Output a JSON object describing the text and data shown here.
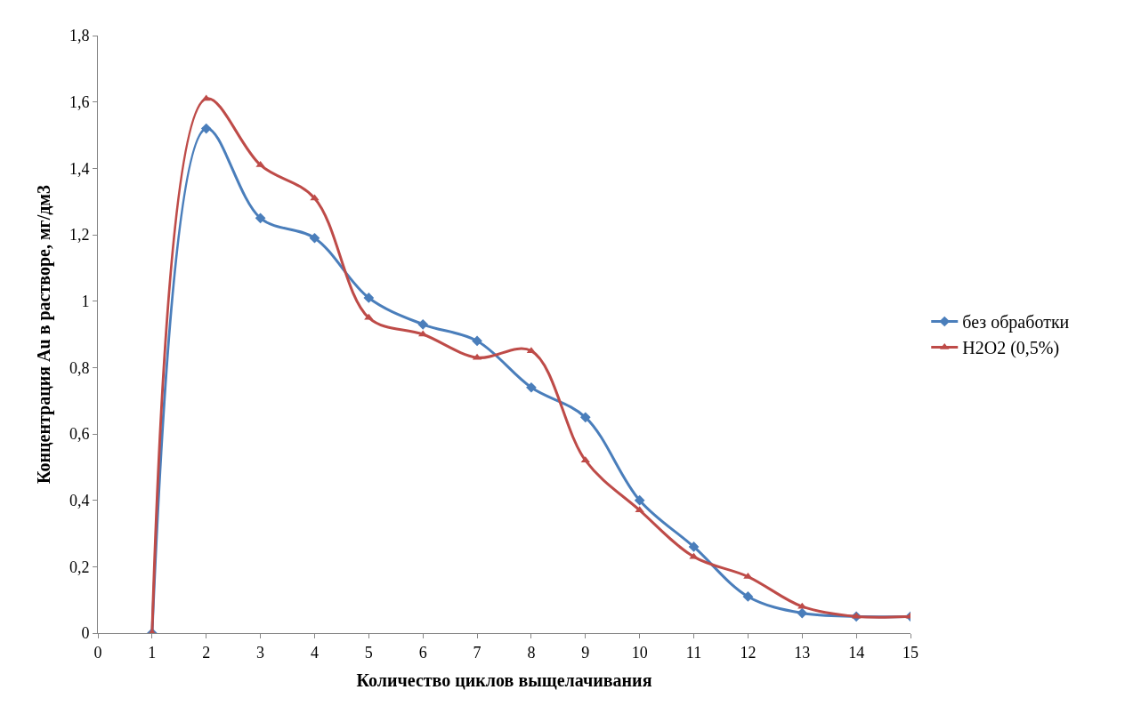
{
  "chart_data": {
    "type": "line",
    "xlabel": "Количество циклов выщелачивания",
    "ylabel": "Концентрация Au в растворе, мг/дм3",
    "x": [
      1,
      2,
      3,
      4,
      5,
      6,
      7,
      8,
      9,
      10,
      11,
      12,
      13,
      14,
      15
    ],
    "series": [
      {
        "name": "без обработки",
        "color": "#4a7ebb",
        "marker": "diamond",
        "values": [
          0,
          1.52,
          1.25,
          1.19,
          1.01,
          0.93,
          0.88,
          0.74,
          0.65,
          0.4,
          0.26,
          0.11,
          0.06,
          0.05,
          0.05
        ]
      },
      {
        "name": "H2O2 (0,5%)",
        "color": "#be4b48",
        "marker": "triangle",
        "values": [
          0,
          1.61,
          1.41,
          1.31,
          0.95,
          0.9,
          0.83,
          0.85,
          0.52,
          0.37,
          0.23,
          0.17,
          0.08,
          0.05,
          0.05
        ]
      }
    ],
    "xlim": [
      0,
      15
    ],
    "xticks": [
      0,
      1,
      2,
      3,
      4,
      5,
      6,
      7,
      8,
      9,
      10,
      11,
      12,
      13,
      14,
      15
    ],
    "ylim": [
      0,
      1.8
    ],
    "yticks": [
      0,
      {
        "value": 0.2,
        "label": "0,2"
      },
      {
        "value": 0.4,
        "label": "0,4"
      },
      {
        "value": 0.6,
        "label": "0,6"
      },
      {
        "value": 0.8,
        "label": "0,8"
      },
      1,
      {
        "value": 1.2,
        "label": "1,2"
      },
      {
        "value": 1.4,
        "label": "1,4"
      },
      {
        "value": 1.6,
        "label": "1,6"
      },
      {
        "value": 1.8,
        "label": "1,8"
      }
    ],
    "legend": "right",
    "line_style": "solid"
  }
}
